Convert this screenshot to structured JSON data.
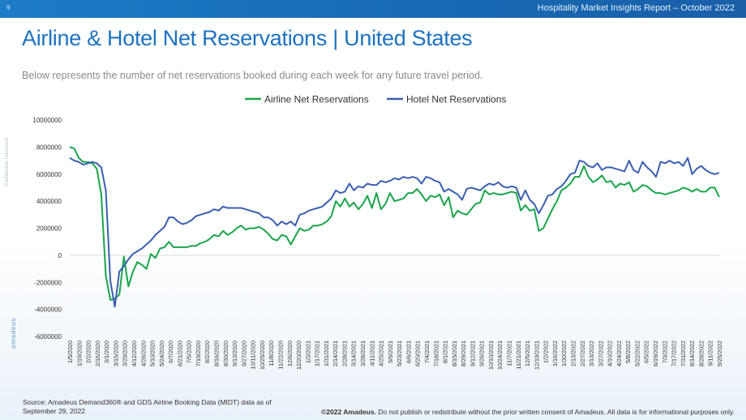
{
  "header": {
    "page_number": "9",
    "report_title": "Hospitality Market Insights Report – October 2022"
  },
  "title": "Airline & Hotel Net Reservations | United States",
  "subtitle": "Below represents the number of net reservations booked during each week for any future travel period.",
  "side_label": "Confidential Document",
  "side_logo": "amadeus",
  "footer": {
    "source": "Source: Amadeus Demand360® and GDS Airline Booking Data (MIDT) data as of September 29, 2022",
    "copyright_bold": "©2022 Amadeus.",
    "copyright_rest": " Do not publish or redistribute without the prior written consent of Amadeus. All data is for informational purposes only."
  },
  "colors": {
    "airline": "#1aa54a",
    "hotel": "#3a5fb0",
    "accent": "#1d72c1"
  },
  "chart_data": {
    "type": "line",
    "title": "",
    "xlabel": "",
    "ylabel": "",
    "ylim": [
      -6000000,
      10000000
    ],
    "yticks": [
      10000000,
      8000000,
      6000000,
      4000000,
      2000000,
      0,
      -2000000,
      -4000000,
      -6000000
    ],
    "ytick_labels": [
      "10000000",
      "8000000",
      "6000000",
      "4000000",
      "2000000",
      "0",
      "-2000000",
      "-4000000",
      "-6000000"
    ],
    "legend": "top-center",
    "x_tick_labels": [
      "1/5/2020",
      "1/19/2020",
      "2/2/2020",
      "2/16/2020",
      "3/1/2020",
      "3/15/2020",
      "3/29/2020",
      "4/12/2020",
      "4/26/2020",
      "5/10/2020",
      "5/24/2020",
      "6/7/2020",
      "6/21/2020",
      "7/5/2020",
      "7/19/2020",
      "8/2/2020",
      "8/16/2020",
      "8/30/2020",
      "9/13/2020",
      "9/27/2020",
      "10/11/2020",
      "10/25/2020",
      "11/8/2020",
      "11/22/2020",
      "12/6/2020",
      "12/20/2020",
      "1/3/2021",
      "1/17/2021",
      "1/31/2021",
      "2/14/2021",
      "2/28/2021",
      "3/14/2021",
      "3/28/2021",
      "4/11/2021",
      "4/25/2021",
      "5/9/2021",
      "5/23/2021",
      "6/6/2021",
      "6/20/2021",
      "7/4/2021",
      "7/18/2021",
      "8/1/2021",
      "8/15/2021",
      "8/29/2021",
      "9/12/2021",
      "9/26/2021",
      "10/10/2021",
      "10/24/2021",
      "11/7/2021",
      "11/21/2021",
      "12/5/2021",
      "12/19/2021",
      "1/2/2022",
      "1/16/2022",
      "1/30/2022",
      "2/13/2022",
      "2/27/2022",
      "3/13/2022",
      "3/27/2022",
      "4/10/2022",
      "4/24/2022",
      "5/8/2022",
      "5/22/2022",
      "6/5/2022",
      "6/19/2022",
      "7/3/2022",
      "7/17/2022",
      "7/31/2022",
      "8/14/2022",
      "8/28/2022",
      "9/11/2022",
      "9/25/2022"
    ],
    "series": [
      {
        "name": "Airline Net Reservations",
        "values": [
          8000000,
          7900000,
          7200000,
          6900000,
          6900000,
          6800000,
          6400000,
          4500000,
          -1500000,
          -3300000,
          -3200000,
          -2900000,
          -100000,
          -2300000,
          -1200000,
          -500000,
          -700000,
          -1000000,
          100000,
          -200000,
          500000,
          600000,
          1000000,
          600000,
          600000,
          600000,
          600000,
          700000,
          700000,
          900000,
          1000000,
          1200000,
          1500000,
          1400000,
          1800000,
          1500000,
          1700000,
          2000000,
          2200000,
          1900000,
          2000000,
          2000000,
          2100000,
          1900000,
          1600000,
          1200000,
          1100000,
          1500000,
          1400000,
          800000,
          1400000,
          2000000,
          1800000,
          1900000,
          2200000,
          2200000,
          2300000,
          2500000,
          2900000,
          4000000,
          3600000,
          4200000,
          3600000,
          3900000,
          3400000,
          3800000,
          4400000,
          3500000,
          4600000,
          3400000,
          3800000,
          4600000,
          4000000,
          4100000,
          4200000,
          4600000,
          4600000,
          4900000,
          4500000,
          4000000,
          4400000,
          4300000,
          4500000,
          3700000,
          4300000,
          2800000,
          3300000,
          3100000,
          3000000,
          3400000,
          3800000,
          3900000,
          4800000,
          4500000,
          4600000,
          4500000,
          4500000,
          4600000,
          4700000,
          4600000,
          3300000,
          3700000,
          3300000,
          3400000,
          1800000,
          2000000,
          2700000,
          3400000,
          4000000,
          4800000,
          5000000,
          5300000,
          5800000,
          5800000,
          6600000,
          5800000,
          5400000,
          5600000,
          5900000,
          5400000,
          5500000,
          5000000,
          5300000,
          5200000,
          5400000,
          4700000,
          4900000,
          5200000,
          5100000,
          4800000,
          4600000,
          4600000,
          4500000,
          4600000,
          4700000,
          4800000,
          5000000,
          4900000,
          4700000,
          4900000,
          4700000,
          4700000,
          5000000,
          5000000,
          4300000
        ]
      },
      {
        "name": "Hotel Net Reservations",
        "values": [
          7200000,
          7000000,
          6900000,
          6700000,
          6800000,
          6900000,
          6800000,
          6500000,
          4800000,
          -1900000,
          -3800000,
          -1200000,
          -800000,
          -300000,
          100000,
          300000,
          500000,
          800000,
          1100000,
          1500000,
          1800000,
          2100000,
          2800000,
          2800000,
          2500000,
          2300000,
          2400000,
          2600000,
          2900000,
          3000000,
          3100000,
          3200000,
          3400000,
          3300000,
          3600000,
          3500000,
          3500000,
          3500000,
          3500000,
          3400000,
          3300000,
          3200000,
          3100000,
          2800000,
          2800000,
          2600000,
          2200000,
          2500000,
          2300000,
          2500000,
          2200000,
          3000000,
          3100000,
          3300000,
          3400000,
          3500000,
          3600000,
          3900000,
          4200000,
          4800000,
          4600000,
          4700000,
          5300000,
          4800000,
          5100000,
          5000000,
          5300000,
          5200000,
          5200000,
          5500000,
          5400000,
          5500000,
          5700000,
          5600000,
          5800000,
          5700000,
          5800000,
          5700000,
          5300000,
          5800000,
          5700000,
          5500000,
          5400000,
          4700000,
          4900000,
          4700000,
          4500000,
          4100000,
          4900000,
          5000000,
          4900000,
          4800000,
          5100000,
          5300000,
          5200000,
          5400000,
          5100000,
          5000000,
          5100000,
          5000000,
          4100000,
          4800000,
          4100000,
          3800000,
          3100000,
          3700000,
          4400000,
          4500000,
          4900000,
          5100000,
          5500000,
          6000000,
          6100000,
          7000000,
          6900000,
          6600000,
          6500000,
          6800000,
          6300000,
          6500000,
          6500000,
          6400000,
          6300000,
          6200000,
          7000000,
          6300000,
          6100000,
          6900000,
          6500000,
          6200000,
          5800000,
          6900000,
          6800000,
          7000000,
          6800000,
          6900000,
          6600000,
          7200000,
          6000000,
          6400000,
          6600000,
          6300000,
          6100000,
          6000000,
          6100000
        ]
      }
    ]
  }
}
